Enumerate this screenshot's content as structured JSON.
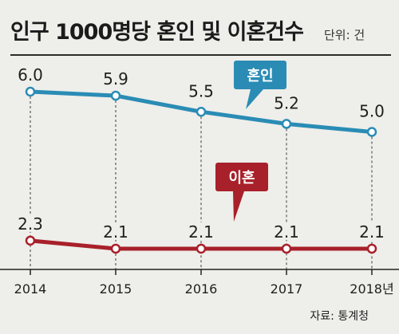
{
  "header": {
    "title": "인구 1000명당 혼인 및 이혼건수",
    "unit": "단위: 건"
  },
  "source": "자료: 통계청",
  "chart_data": {
    "type": "line",
    "title": "인구 1000명당 혼인 및 이혼건수",
    "categories": [
      "2014",
      "2015",
      "2016",
      "2017",
      "2018년"
    ],
    "x": [
      2014,
      2015,
      2016,
      2017,
      2018
    ],
    "series": [
      {
        "name": "혼인",
        "values": [
          6.0,
          5.9,
          5.5,
          5.2,
          5.0
        ],
        "labels": [
          "6.0",
          "5.9",
          "5.5",
          "5.2",
          "5.0"
        ],
        "color": "#2a8cb5"
      },
      {
        "name": "이혼",
        "values": [
          2.3,
          2.1,
          2.1,
          2.1,
          2.1
        ],
        "labels": [
          "2.3",
          "2.1",
          "2.1",
          "2.1",
          "2.1"
        ],
        "color": "#a8202a"
      }
    ],
    "xlabel": "",
    "ylabel": "",
    "grid": false,
    "legend": "inline callouts"
  }
}
